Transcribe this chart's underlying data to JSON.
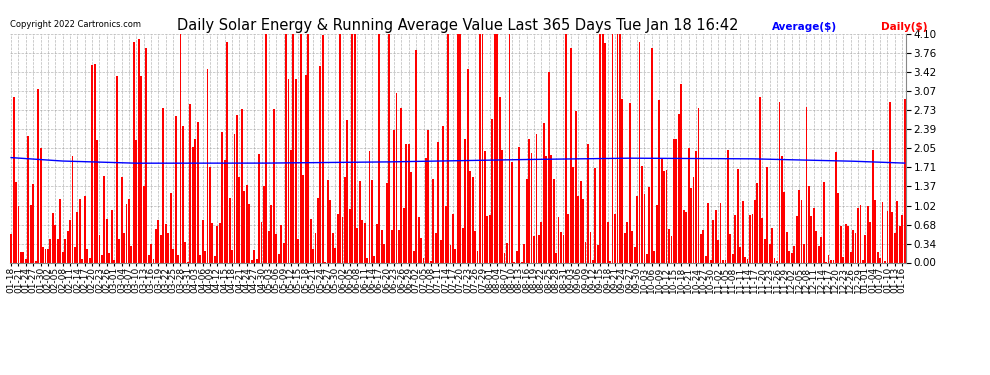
{
  "title": "Daily Solar Energy & Running Average Value Last 365 Days Tue Jan 18 16:42",
  "copyright": "Copyright 2022 Cartronics.com",
  "legend_avg": "Average($)",
  "legend_daily": "Daily($)",
  "bar_color": "#ff0000",
  "avg_line_color": "#0000ff",
  "background_color": "#ffffff",
  "grid_color": "#999999",
  "ylim": [
    0.0,
    4.1
  ],
  "yticks": [
    0.0,
    0.34,
    0.68,
    1.02,
    1.37,
    1.71,
    2.05,
    2.39,
    2.73,
    3.07,
    3.42,
    3.76,
    4.1
  ],
  "title_fontsize": 10.5,
  "tick_fontsize": 6.5,
  "figsize": [
    9.9,
    3.75
  ],
  "dpi": 100,
  "start_date": "2021-01-18",
  "n_days": 365,
  "seed": 42,
  "avg_control_x": [
    0,
    20,
    50,
    100,
    150,
    200,
    250,
    300,
    340,
    365
  ],
  "avg_control_y": [
    1.88,
    1.82,
    1.78,
    1.78,
    1.8,
    1.84,
    1.87,
    1.86,
    1.82,
    1.78
  ]
}
